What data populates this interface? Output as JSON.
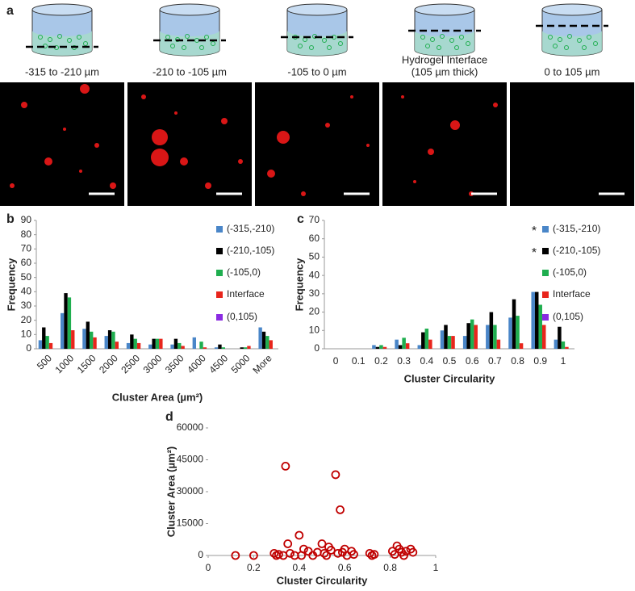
{
  "panel_labels": [
    "a",
    "b",
    "c",
    "d"
  ],
  "captions": [
    {
      "lines": [
        "-315 to -210 µm"
      ]
    },
    {
      "lines": [
        "-210 to -105 µm"
      ]
    },
    {
      "lines": [
        "-105 to 0 µm"
      ]
    },
    {
      "lines": [
        "Hydrogel Interface",
        "(105 µm thick)"
      ]
    },
    {
      "lines": [
        "0 to 105 µm"
      ]
    }
  ],
  "chart_data": [
    {
      "type": "bar",
      "xlabel": "Cluster Area (µm²)",
      "ylabel": "Frequency",
      "categories": [
        "500",
        "1000",
        "1500",
        "2000",
        "2500",
        "3000",
        "3500",
        "4000",
        "4500",
        "5000",
        "More"
      ],
      "series": [
        {
          "name": "(-315,-210)",
          "color": "#4a86c8",
          "values": [
            6,
            25,
            14,
            9,
            4,
            3,
            3,
            8,
            1,
            0,
            15
          ]
        },
        {
          "name": "(-210,-105)",
          "color": "#000000",
          "values": [
            15,
            39,
            19,
            13,
            10,
            7,
            7,
            0,
            3,
            1,
            12
          ]
        },
        {
          "name": "(-105,0)",
          "color": "#1fae4f",
          "values": [
            9,
            36,
            12,
            12,
            7,
            7,
            4,
            5,
            1,
            1,
            9
          ]
        },
        {
          "name": "Interface",
          "color": "#e8251c",
          "values": [
            4,
            13,
            8,
            5,
            4,
            7,
            2,
            1,
            0,
            2,
            6
          ]
        },
        {
          "name": "(0,105)",
          "color": "#8b2be2",
          "values": [
            0,
            0,
            0,
            0,
            0,
            0,
            0,
            0,
            0,
            0,
            0
          ]
        }
      ],
      "ylim": [
        0,
        90
      ],
      "yticks": [
        0,
        10,
        20,
        30,
        40,
        50,
        60,
        70,
        80,
        90
      ],
      "legend": "right"
    },
    {
      "type": "bar",
      "xlabel": "Cluster Circularity",
      "ylabel": "Frequency",
      "categories": [
        "0",
        "0.1",
        "0.2",
        "0.3",
        "0.4",
        "0.5",
        "0.6",
        "0.7",
        "0.8",
        "0.9",
        "1"
      ],
      "series": [
        {
          "name": "(-315,-210)",
          "color": "#4a86c8",
          "values": [
            0,
            0,
            2,
            5,
            2,
            10,
            7,
            13,
            17,
            31,
            5
          ]
        },
        {
          "name": "(-210,-105)",
          "color": "#000000",
          "values": [
            0,
            0,
            1,
            2,
            9,
            13,
            14,
            20,
            27,
            31,
            12
          ]
        },
        {
          "name": "(-105,0)",
          "color": "#1fae4f",
          "values": [
            0,
            0,
            2,
            6,
            11,
            7,
            16,
            13,
            18,
            24,
            4
          ]
        },
        {
          "name": "Interface",
          "color": "#e8251c",
          "values": [
            0,
            0,
            1,
            3,
            5,
            7,
            13,
            5,
            3,
            13,
            1
          ]
        },
        {
          "name": "(0,105)",
          "color": "#8b2be2",
          "values": [
            0,
            0,
            0,
            0,
            0,
            0,
            0,
            0,
            0,
            0,
            0
          ]
        }
      ],
      "ylim": [
        0,
        70
      ],
      "yticks": [
        0,
        10,
        20,
        30,
        40,
        50,
        60,
        70
      ],
      "legend": "right",
      "annotations": [
        "*",
        "*"
      ]
    },
    {
      "type": "scatter",
      "xlabel": "Cluster Circularity",
      "ylabel": "Cluster Area (µm²)",
      "color": "#c00000",
      "x": [
        0.12,
        0.2,
        0.29,
        0.3,
        0.31,
        0.33,
        0.34,
        0.35,
        0.36,
        0.38,
        0.4,
        0.41,
        0.42,
        0.44,
        0.46,
        0.48,
        0.5,
        0.51,
        0.52,
        0.53,
        0.54,
        0.56,
        0.57,
        0.58,
        0.59,
        0.6,
        0.61,
        0.63,
        0.64,
        0.71,
        0.72,
        0.73,
        0.81,
        0.82,
        0.83,
        0.84,
        0.85,
        0.86,
        0.87,
        0.89,
        0.9
      ],
      "y": [
        0,
        0,
        1000,
        0,
        500,
        0,
        42000,
        5500,
        1000,
        0,
        9500,
        0,
        3000,
        2000,
        0,
        1500,
        5500,
        1000,
        0,
        4000,
        2500,
        38000,
        1000,
        21500,
        1500,
        3000,
        0,
        2000,
        500,
        1000,
        0,
        500,
        2000,
        500,
        4500,
        3000,
        1500,
        0,
        2000,
        3000,
        1500
      ],
      "xlim": [
        0,
        1
      ],
      "xticks": [
        0,
        0.2,
        0.4,
        0.6,
        0.8,
        1
      ],
      "ylim": [
        0,
        60000
      ],
      "yticks": [
        0,
        15000,
        30000,
        45000,
        60000
      ]
    }
  ]
}
